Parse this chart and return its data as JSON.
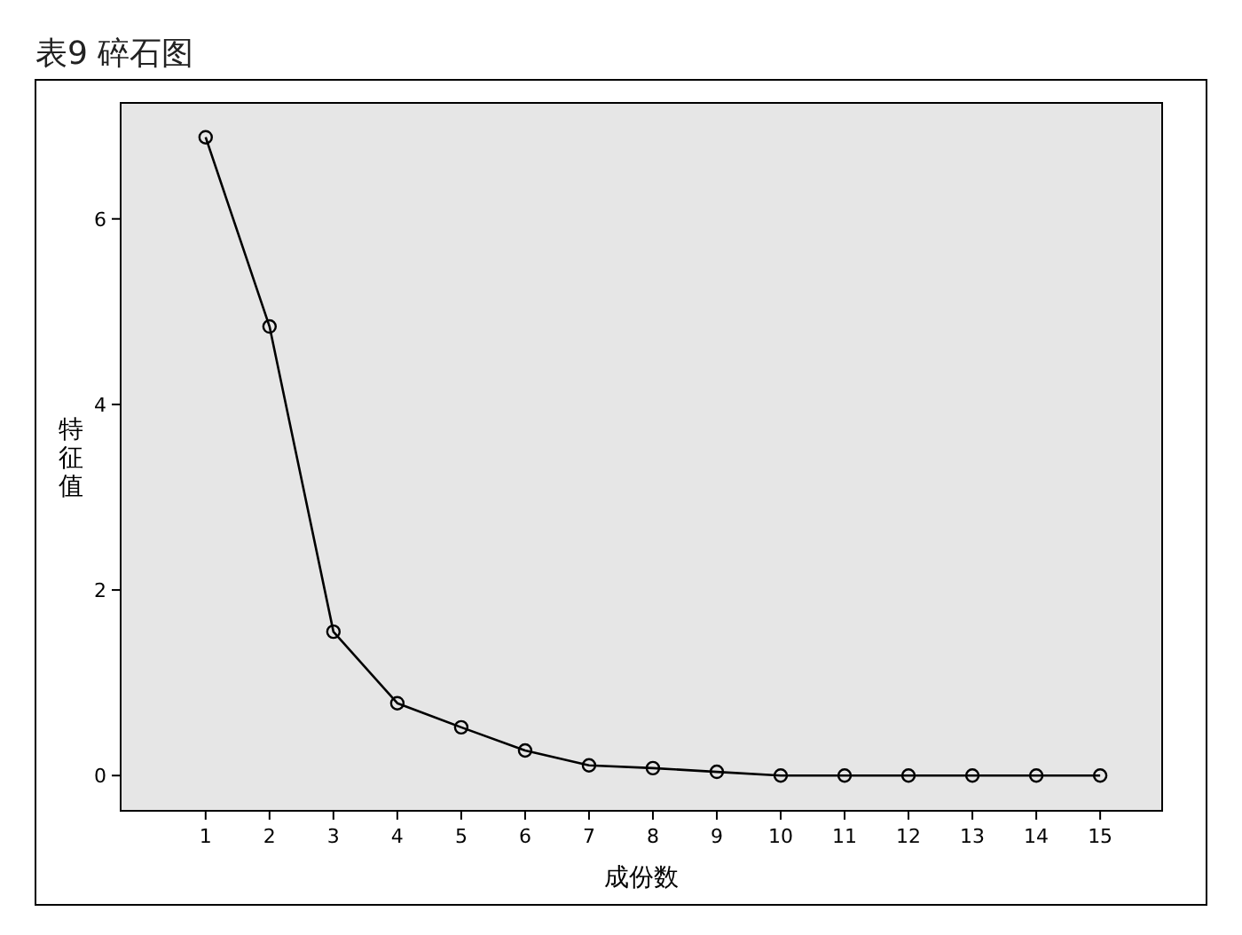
{
  "chart_data": {
    "type": "line",
    "title": "表9 碎石图",
    "xlabel": "成份数",
    "ylabel": "特征值",
    "x": [
      1,
      2,
      3,
      4,
      5,
      6,
      7,
      8,
      9,
      10,
      11,
      12,
      13,
      14,
      15
    ],
    "series": [
      {
        "color": "#000000",
        "values": [
          6.88,
          4.84,
          1.55,
          0.78,
          0.52,
          0.27,
          0.11,
          0.08,
          0.04,
          0,
          0,
          0,
          0,
          0,
          0
        ]
      }
    ],
    "xlim": [
      -0.33,
      15.97
    ],
    "ylim": [
      -0.38,
      7.25
    ],
    "xticks": [
      1,
      2,
      3,
      4,
      5,
      6,
      7,
      8,
      9,
      10,
      11,
      12,
      13,
      14,
      15
    ],
    "yticks": [
      0,
      2,
      4,
      6
    ],
    "grid": false,
    "marker": "circle",
    "line_style": "solid"
  }
}
